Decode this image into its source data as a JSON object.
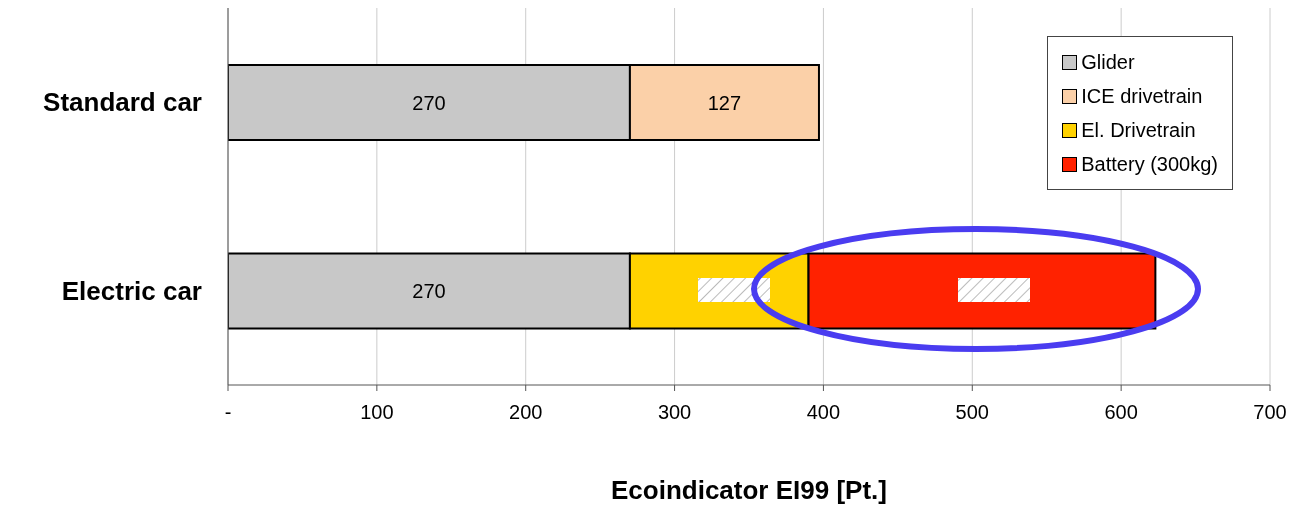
{
  "chart_data": {
    "type": "bar",
    "orientation": "horizontal",
    "stacked": true,
    "xlabel": "Ecoindicator EI99  [Pt.]",
    "categories": [
      "Standard car",
      "Electric car"
    ],
    "series": [
      {
        "name": "Glider",
        "color": "#c8c8c8",
        "values": [
          270,
          270
        ],
        "value_labels": [
          "270",
          "270"
        ]
      },
      {
        "name": "ICE drivetrain",
        "color": "#fbd0a8",
        "values": [
          127,
          null
        ],
        "value_labels": [
          "127",
          null
        ]
      },
      {
        "name": "El. Drivetrain",
        "color": "#ffd200",
        "values": [
          null,
          120
        ],
        "value_labels": [
          null,
          null
        ]
      },
      {
        "name": "Battery (300kg)",
        "color": "#ff2200",
        "values": [
          null,
          233
        ],
        "value_labels": [
          null,
          null
        ]
      }
    ],
    "xlim": [
      0,
      700
    ],
    "xticks": [
      {
        "value": 0,
        "label": "-"
      },
      100,
      200,
      300,
      400,
      500,
      600,
      700
    ],
    "grid": "x",
    "legend": "top right"
  }
}
